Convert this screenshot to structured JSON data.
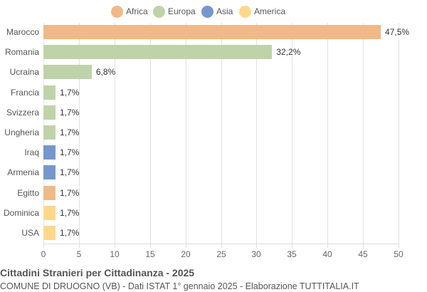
{
  "chart_data": {
    "type": "bar",
    "orientation": "horizontal",
    "title": "Cittadini Stranieri per Cittadinanza - 2025",
    "subtitle": "COMUNE DI DRUOGNO (VB) - Dati ISTAT 1° gennaio 2025 - Elaborazione TUTTITALIA.IT",
    "xlabel": "",
    "ylabel": "",
    "xlim": [
      0,
      50
    ],
    "x_ticks": [
      "0",
      "5",
      "10",
      "15",
      "20",
      "25",
      "30",
      "35",
      "40",
      "45",
      "50"
    ],
    "grid": true,
    "legend_position": "top",
    "legend": [
      {
        "name": "Africa",
        "color": "#f0b987"
      },
      {
        "name": "Europa",
        "color": "#bfd3a9"
      },
      {
        "name": "Asia",
        "color": "#7597cd"
      },
      {
        "name": "America",
        "color": "#fdd88b"
      }
    ],
    "categories": [
      "Marocco",
      "Romania",
      "Ucraina",
      "Francia",
      "Svizzera",
      "Ungheria",
      "Iraq",
      "Armenia",
      "Egitto",
      "Dominica",
      "USA"
    ],
    "values": [
      47.5,
      32.2,
      6.8,
      1.7,
      1.7,
      1.7,
      1.7,
      1.7,
      1.7,
      1.7,
      1.7
    ],
    "value_labels": [
      "47,5%",
      "32,2%",
      "6,8%",
      "1,7%",
      "1,7%",
      "1,7%",
      "1,7%",
      "1,7%",
      "1,7%",
      "1,7%",
      "1,7%"
    ],
    "groups": [
      "Africa",
      "Europa",
      "Europa",
      "Europa",
      "Europa",
      "Europa",
      "Asia",
      "Asia",
      "Africa",
      "America",
      "America"
    ]
  }
}
